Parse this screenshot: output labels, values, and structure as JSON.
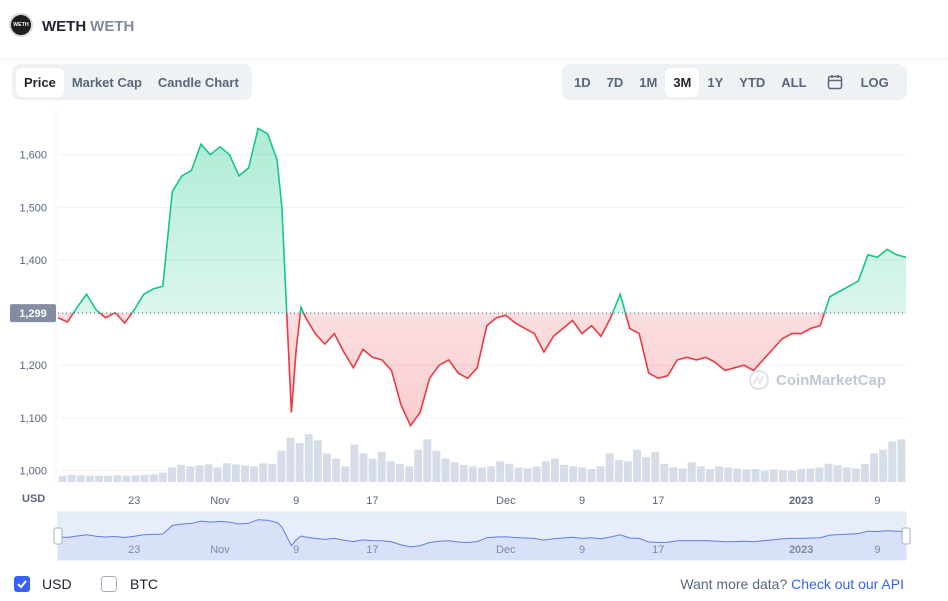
{
  "header": {
    "name": "WETH",
    "symbol": "WETH",
    "logo_text": "WETH"
  },
  "tabs": [
    {
      "label": "Price",
      "active": true
    },
    {
      "label": "Market Cap",
      "active": false
    },
    {
      "label": "Candle Chart",
      "active": false
    }
  ],
  "ranges": [
    {
      "label": "1D",
      "active": false
    },
    {
      "label": "7D",
      "active": false
    },
    {
      "label": "1M",
      "active": false
    },
    {
      "label": "3M",
      "active": true
    },
    {
      "label": "1Y",
      "active": false
    },
    {
      "label": "YTD",
      "active": false
    },
    {
      "label": "ALL",
      "active": false
    }
  ],
  "log_label": "LOG",
  "colors": {
    "up": "#16c784",
    "down": "#ea3943",
    "accent": "#3861fb",
    "text": "#58667e"
  },
  "chart_data": {
    "type": "line",
    "ylabel": "USD",
    "yticks": [
      1000,
      1100,
      1200,
      1300,
      1400,
      1500,
      1600
    ],
    "ytick_labels": [
      "1,000",
      "1,100",
      "1,200",
      "",
      "1,400",
      "1,500",
      "1,600"
    ],
    "ylim": [
      978,
      1685
    ],
    "baseline": 1299,
    "baseline_label": "1,299",
    "x_tick_labels": [
      {
        "day": 23,
        "label": "23"
      },
      {
        "day": 32,
        "label": "Nov"
      },
      {
        "day": 40,
        "label": "9"
      },
      {
        "day": 48,
        "label": "17"
      },
      {
        "day": 62,
        "label": "Dec"
      },
      {
        "day": 70,
        "label": "9"
      },
      {
        "day": 78,
        "label": "17"
      },
      {
        "day": 93,
        "label": "2023"
      },
      {
        "day": 101,
        "label": "9"
      }
    ],
    "xlim": [
      15,
      104
    ],
    "series": [
      {
        "x": [
          15,
          16,
          17,
          18,
          19,
          20,
          21,
          22,
          23,
          24,
          25,
          26,
          27,
          28,
          29,
          30,
          31,
          32,
          33,
          34,
          35,
          36,
          37,
          38,
          38.5,
          39,
          39.5,
          40,
          40.5,
          41,
          42,
          43,
          44,
          45,
          46,
          47,
          48,
          49,
          50,
          51,
          52,
          53,
          54,
          55,
          56,
          57,
          58,
          59,
          60,
          61,
          62,
          63,
          64,
          65,
          66,
          67,
          68,
          69,
          70,
          71,
          72,
          73,
          74,
          75,
          76,
          77,
          78,
          79,
          80,
          81,
          82,
          83,
          84,
          85,
          86,
          87,
          88,
          89,
          90,
          91,
          92,
          93,
          94,
          95,
          96,
          97,
          98,
          99,
          100,
          101,
          102,
          103,
          104
        ],
        "y": [
          1290,
          1282,
          1310,
          1335,
          1305,
          1290,
          1300,
          1280,
          1305,
          1335,
          1345,
          1350,
          1530,
          1560,
          1570,
          1620,
          1600,
          1615,
          1600,
          1560,
          1575,
          1650,
          1640,
          1590,
          1500,
          1300,
          1110,
          1230,
          1310,
          1290,
          1260,
          1240,
          1260,
          1225,
          1195,
          1230,
          1215,
          1210,
          1190,
          1125,
          1085,
          1110,
          1175,
          1200,
          1210,
          1185,
          1175,
          1195,
          1275,
          1290,
          1295,
          1280,
          1270,
          1260,
          1225,
          1255,
          1270,
          1285,
          1260,
          1275,
          1255,
          1290,
          1335,
          1270,
          1260,
          1185,
          1175,
          1180,
          1210,
          1215,
          1210,
          1215,
          1205,
          1190,
          1195,
          1200,
          1190,
          1210,
          1230,
          1250,
          1260,
          1260,
          1270,
          1275,
          1330,
          1340,
          1350,
          1360,
          1410,
          1405,
          1420,
          1410,
          1405
        ]
      }
    ],
    "volume_relative": [
      0.12,
      0.14,
      0.13,
      0.12,
      0.12,
      0.12,
      0.13,
      0.12,
      0.13,
      0.14,
      0.15,
      0.18,
      0.28,
      0.33,
      0.3,
      0.32,
      0.34,
      0.28,
      0.36,
      0.34,
      0.32,
      0.3,
      0.36,
      0.35,
      0.6,
      0.85,
      0.75,
      0.92,
      0.8,
      0.55,
      0.45,
      0.3,
      0.72,
      0.55,
      0.45,
      0.58,
      0.4,
      0.35,
      0.3,
      0.62,
      0.82,
      0.6,
      0.45,
      0.38,
      0.33,
      0.3,
      0.28,
      0.3,
      0.4,
      0.35,
      0.28,
      0.26,
      0.3,
      0.4,
      0.45,
      0.33,
      0.3,
      0.28,
      0.25,
      0.3,
      0.55,
      0.42,
      0.4,
      0.62,
      0.48,
      0.58,
      0.35,
      0.28,
      0.26,
      0.38,
      0.3,
      0.25,
      0.3,
      0.28,
      0.26,
      0.24,
      0.25,
      0.22,
      0.24,
      0.23,
      0.22,
      0.25,
      0.26,
      0.28,
      0.35,
      0.32,
      0.28,
      0.26,
      0.35,
      0.55,
      0.62,
      0.78,
      0.82
    ],
    "watermark": "CoinMarketCap",
    "navigator": {
      "x_tick_labels": [
        {
          "day": 23,
          "label": "23"
        },
        {
          "day": 32,
          "label": "Nov"
        },
        {
          "day": 40,
          "label": "9"
        },
        {
          "day": 48,
          "label": "17"
        },
        {
          "day": 62,
          "label": "Dec"
        },
        {
          "day": 70,
          "label": "9"
        },
        {
          "day": 78,
          "label": "17"
        },
        {
          "day": 93,
          "label": "2023"
        },
        {
          "day": 101,
          "label": "9"
        }
      ]
    }
  },
  "footer": {
    "usd_label": "USD",
    "usd_checked": true,
    "btc_label": "BTC",
    "btc_checked": false,
    "more_text": "Want more data?",
    "more_link": "Check out our API"
  }
}
